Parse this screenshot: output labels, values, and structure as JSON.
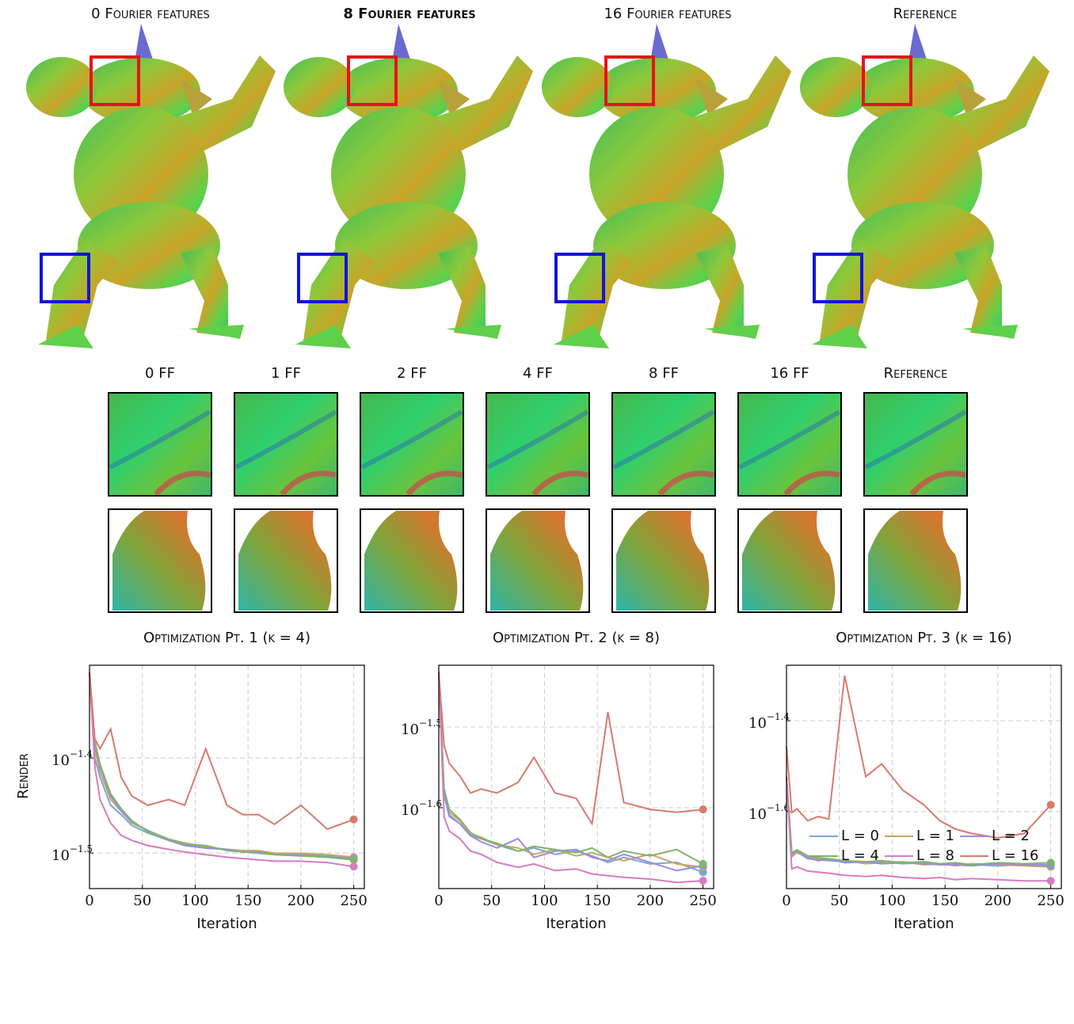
{
  "figure": {
    "columns": [
      "0 Fourier features",
      "8 Fourier features",
      "16 Fourier features",
      "Reference"
    ],
    "crop_labels": [
      "0 FF",
      "1 FF",
      "2 FF",
      "4 FF",
      "8 FF",
      "16 FF",
      "Reference"
    ]
  },
  "chart_data": [
    {
      "type": "line",
      "title": "Optimization Pt. 1 (k = 4)",
      "xlabel": "Iteration",
      "ylabel": "Render",
      "log_scale": true,
      "grid": true,
      "x": [
        0,
        5,
        10,
        20,
        30,
        40,
        55,
        75,
        90,
        110,
        130,
        145,
        160,
        175,
        200,
        225,
        250
      ],
      "xlim": [
        0,
        260
      ],
      "xticks": [
        0,
        50,
        100,
        150,
        200,
        250
      ],
      "ylim": [
        0.02901,
        0.04983
      ],
      "yticks": [
        {
          "value": 0.03981,
          "label": "10",
          "exponent": "−1.4"
        },
        {
          "value": 0.03162,
          "label": "10",
          "exponent": "−1.5"
        }
      ],
      "series": [
        {
          "name": "L = 0",
          "color": "#7aa6d4",
          "values": [
            0.049,
            0.0398,
            0.038,
            0.0355,
            0.0347,
            0.0338,
            0.0332,
            0.0326,
            0.0323,
            0.032,
            0.0319,
            0.0318,
            0.0317,
            0.0316,
            0.0315,
            0.0314,
            0.0312
          ]
        },
        {
          "name": "L = 1",
          "color": "#c9a560",
          "values": [
            0.049,
            0.0407,
            0.0385,
            0.036,
            0.035,
            0.034,
            0.0334,
            0.0327,
            0.0324,
            0.0321,
            0.0319,
            0.0318,
            0.0318,
            0.0316,
            0.0316,
            0.0315,
            0.0313
          ]
        },
        {
          "name": "L = 2",
          "color": "#9b8be0",
          "values": [
            0.049,
            0.041,
            0.039,
            0.0363,
            0.035,
            0.0341,
            0.0334,
            0.0326,
            0.0322,
            0.032,
            0.0319,
            0.0317,
            0.0317,
            0.0315,
            0.0314,
            0.0313,
            0.0312
          ]
        },
        {
          "name": "L = 4",
          "color": "#7fb56e",
          "values": [
            0.049,
            0.0415,
            0.0392,
            0.0365,
            0.0352,
            0.0342,
            0.0333,
            0.0327,
            0.0323,
            0.0322,
            0.0318,
            0.0317,
            0.0316,
            0.0315,
            0.0314,
            0.0313,
            0.0311
          ]
        },
        {
          "name": "L = 8",
          "color": "#d77cc0",
          "values": [
            0.049,
            0.039,
            0.036,
            0.034,
            0.033,
            0.0326,
            0.0322,
            0.0319,
            0.0317,
            0.0315,
            0.0313,
            0.0312,
            0.0311,
            0.031,
            0.031,
            0.0309,
            0.0306
          ]
        },
        {
          "name": "L = 16",
          "color": "#d87a6e",
          "values": [
            0.049,
            0.0417,
            0.0407,
            0.0427,
            0.038,
            0.0363,
            0.0355,
            0.036,
            0.0355,
            0.0407,
            0.0355,
            0.0347,
            0.0347,
            0.0339,
            0.0355,
            0.0335,
            0.0343
          ]
        }
      ]
    },
    {
      "type": "line",
      "title": "Optimization Pt. 2 (k = 8)",
      "xlabel": "Iteration",
      "log_scale": true,
      "grid": true,
      "x": [
        0,
        5,
        10,
        20,
        30,
        40,
        55,
        75,
        90,
        110,
        130,
        145,
        160,
        175,
        200,
        225,
        250
      ],
      "xlim": [
        0,
        260
      ],
      "xticks": [
        0,
        50,
        100,
        150,
        200,
        250
      ],
      "ylim": [
        0.01995,
        0.03771
      ],
      "yticks": [
        {
          "value": 0.03162,
          "label": "10",
          "exponent": "−1.5"
        },
        {
          "value": 0.02512,
          "label": "10",
          "exponent": "−1.6"
        }
      ],
      "series": [
        {
          "color": "#7aa6d4",
          "values": [
            0.037,
            0.026,
            0.0245,
            0.024,
            0.0232,
            0.023,
            0.0226,
            0.0222,
            0.0224,
            0.022,
            0.0222,
            0.0219,
            0.0215,
            0.0218,
            0.0214,
            0.0215,
            0.0209
          ]
        },
        {
          "color": "#c9a560",
          "values": [
            0.037,
            0.0262,
            0.0248,
            0.0242,
            0.0233,
            0.0231,
            0.0226,
            0.0224,
            0.022,
            0.0223,
            0.0219,
            0.0221,
            0.0218,
            0.0216,
            0.022,
            0.0214,
            0.0212
          ]
        },
        {
          "color": "#9b8be0",
          "values": [
            0.037,
            0.0263,
            0.0246,
            0.024,
            0.0232,
            0.0228,
            0.0224,
            0.023,
            0.0218,
            0.0222,
            0.0223,
            0.0218,
            0.0216,
            0.022,
            0.0215,
            0.021,
            0.0213
          ]
        },
        {
          "color": "#7fb56e",
          "values": [
            0.037,
            0.0265,
            0.025,
            0.0243,
            0.0234,
            0.023,
            0.0227,
            0.0222,
            0.0225,
            0.0223,
            0.0221,
            0.0224,
            0.0218,
            0.0222,
            0.0219,
            0.0223,
            0.0214
          ]
        },
        {
          "color": "#d77cc0",
          "values": [
            0.037,
            0.0245,
            0.0235,
            0.023,
            0.0222,
            0.022,
            0.0215,
            0.0212,
            0.0214,
            0.021,
            0.0211,
            0.0208,
            0.0207,
            0.0206,
            0.0205,
            0.0203,
            0.0204
          ]
        },
        {
          "color": "#d87a6e",
          "values": [
            0.037,
            0.03,
            0.0285,
            0.0275,
            0.0262,
            0.0265,
            0.0262,
            0.027,
            0.029,
            0.0262,
            0.0258,
            0.024,
            0.033,
            0.0255,
            0.025,
            0.0248,
            0.025
          ]
        }
      ]
    },
    {
      "type": "line",
      "title": "Optimization Pt. 3 (k = 16)",
      "xlabel": "Iteration",
      "log_scale": true,
      "grid": true,
      "x": [
        0,
        5,
        10,
        20,
        30,
        40,
        55,
        75,
        90,
        110,
        130,
        145,
        160,
        175,
        200,
        225,
        250
      ],
      "xlim": [
        0,
        260
      ],
      "xticks": [
        0,
        50,
        100,
        150,
        200,
        250
      ],
      "ylim": [
        0.01702,
        0.05272
      ],
      "yticks": [
        {
          "value": 0.03981,
          "label": "10",
          "exponent": "−1.4"
        },
        {
          "value": 0.02512,
          "label": "10",
          "exponent": "−1.6"
        }
      ],
      "series": [
        {
          "color": "#7aa6d4",
          "values": [
            0.03,
            0.02,
            0.0205,
            0.0198,
            0.0197,
            0.0196,
            0.0195,
            0.0194,
            0.0195,
            0.0193,
            0.0194,
            0.0192,
            0.0193,
            0.0192,
            0.0191,
            0.0192,
            0.0192
          ]
        },
        {
          "color": "#c9a560",
          "values": [
            0.03,
            0.0202,
            0.0204,
            0.02,
            0.0198,
            0.0197,
            0.0196,
            0.0193,
            0.0194,
            0.0195,
            0.0192,
            0.0193,
            0.0191,
            0.0193,
            0.0192,
            0.0191,
            0.019
          ]
        },
        {
          "color": "#9b8be0",
          "values": [
            0.03,
            0.0203,
            0.0206,
            0.0199,
            0.0196,
            0.0198,
            0.0194,
            0.0195,
            0.0193,
            0.0194,
            0.0193,
            0.0192,
            0.0192,
            0.0191,
            0.0193,
            0.0192,
            0.0191
          ]
        },
        {
          "color": "#7fb56e",
          "values": [
            0.03,
            0.0204,
            0.0207,
            0.0201,
            0.0199,
            0.0198,
            0.0196,
            0.0195,
            0.0196,
            0.0194,
            0.0195,
            0.0193,
            0.0194,
            0.0192,
            0.0194,
            0.0193,
            0.0194
          ]
        },
        {
          "color": "#d77cc0",
          "values": [
            0.03,
            0.0188,
            0.019,
            0.0186,
            0.0185,
            0.0184,
            0.0182,
            0.0181,
            0.0182,
            0.018,
            0.0179,
            0.018,
            0.0178,
            0.0179,
            0.0178,
            0.0177,
            0.0177
          ]
        },
        {
          "color": "#d87a6e",
          "values": [
            0.035,
            0.025,
            0.0255,
            0.024,
            0.0245,
            0.0242,
            0.05,
            0.03,
            0.032,
            0.028,
            0.026,
            0.024,
            0.023,
            0.0225,
            0.022,
            0.0225,
            0.026
          ]
        }
      ]
    }
  ]
}
